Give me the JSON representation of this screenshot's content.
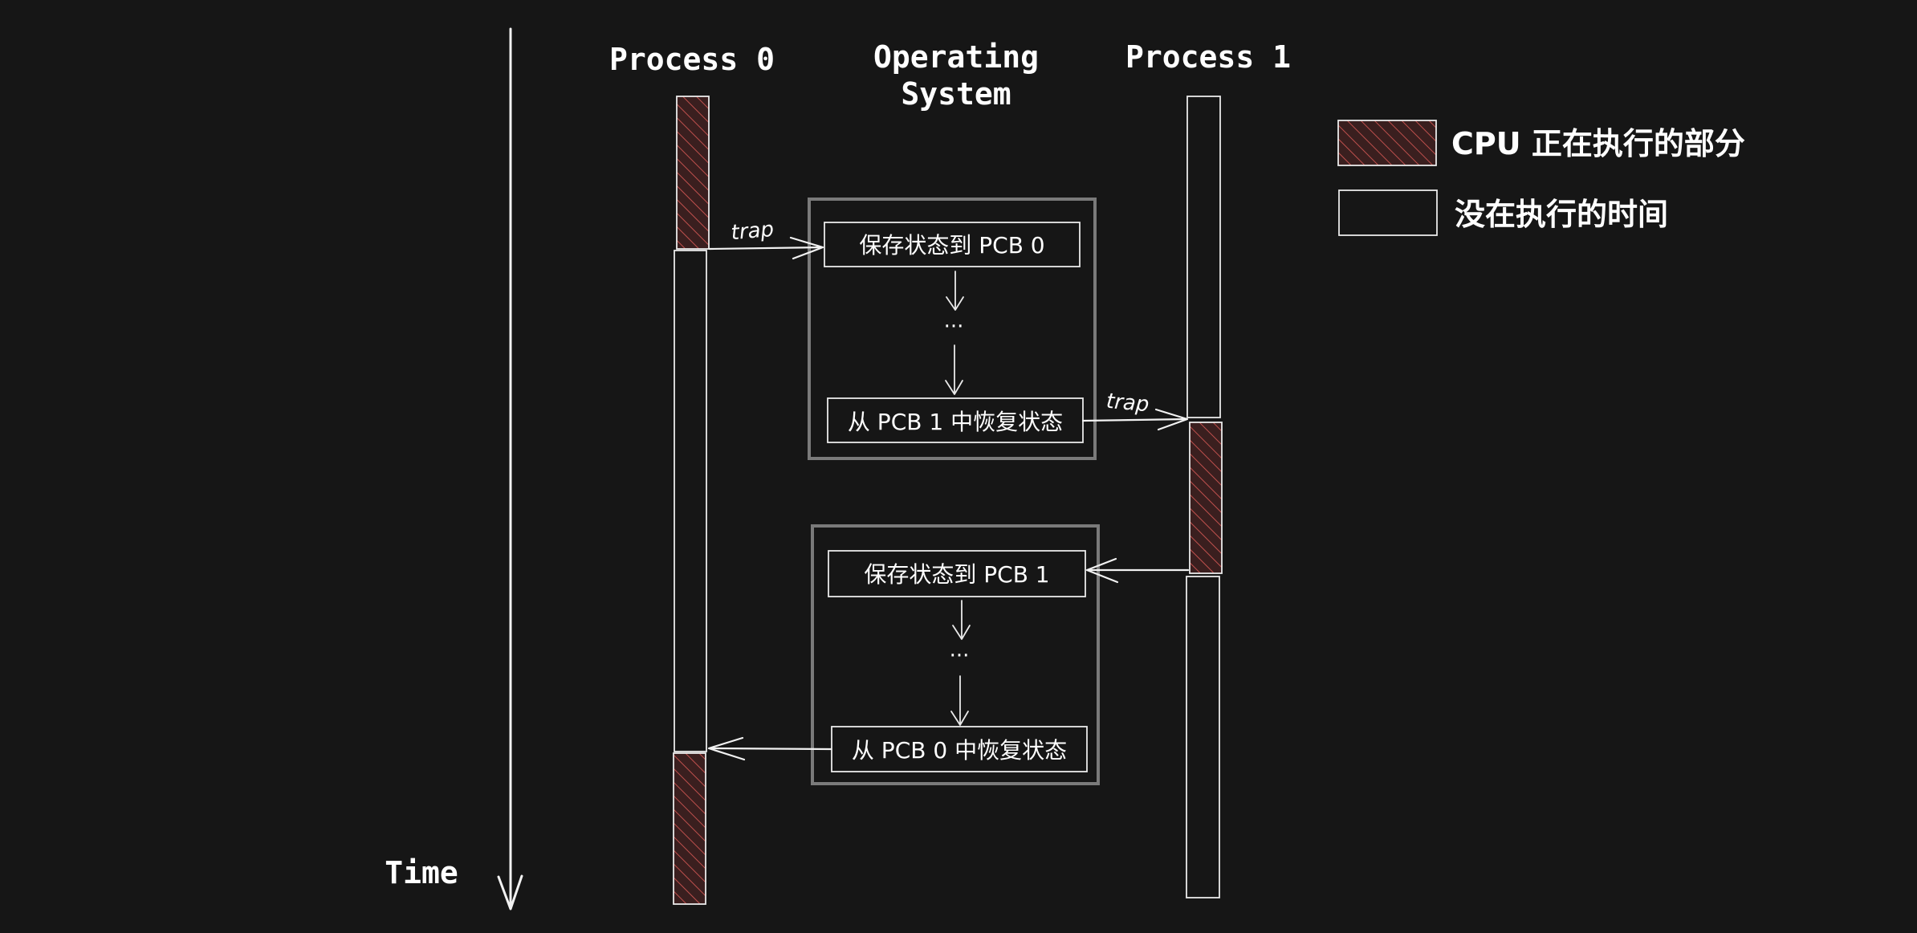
{
  "axis": {
    "label": "Time"
  },
  "columns": {
    "process0": "Process 0",
    "os_line1": "Operating",
    "os_line2": "System",
    "process1": "Process 1"
  },
  "legend": {
    "executing": "CPU 正在执行的部分",
    "idle": "没在执行的时间"
  },
  "os_block_1": {
    "save": "保存状态到 PCB 0",
    "dots": "···",
    "restore": "从 PCB 1 中恢复状态"
  },
  "os_block_2": {
    "save": "保存状态到 PCB 1",
    "dots": "···",
    "restore": "从 PCB 0 中恢复状态"
  },
  "arrows": {
    "trap_1": "trap",
    "trap_2": "trap"
  },
  "colors": {
    "background": "#161616",
    "stroke": "#f2f2f2",
    "hatch": "#c0504d",
    "executing_fill": "#4a2626",
    "os_border": "#7a7a7a"
  }
}
